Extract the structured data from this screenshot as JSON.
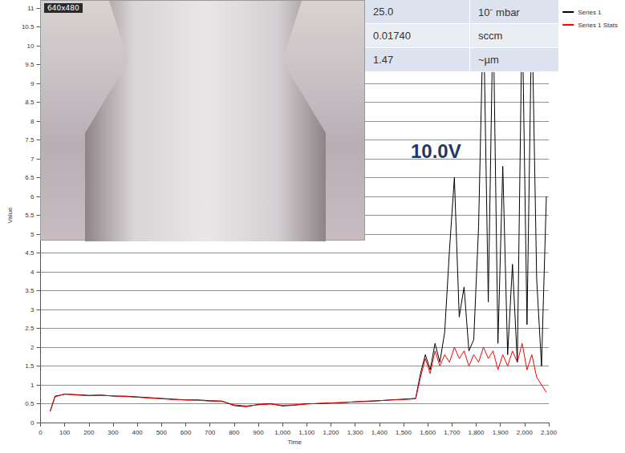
{
  "chart_data": {
    "type": "line",
    "x_label": "Time",
    "y_label": "Value",
    "annotations": [
      "10.0V"
    ],
    "x": [
      40,
      60,
      100,
      150,
      200,
      250,
      300,
      350,
      400,
      450,
      500,
      550,
      600,
      650,
      700,
      750,
      800,
      850,
      900,
      950,
      1000,
      1050,
      1100,
      1150,
      1200,
      1250,
      1300,
      1350,
      1400,
      1450,
      1500,
      1550,
      1570,
      1590,
      1610,
      1630,
      1650,
      1670,
      1690,
      1710,
      1730,
      1750,
      1770,
      1790,
      1810,
      1830,
      1850,
      1870,
      1890,
      1910,
      1930,
      1950,
      1970,
      1990,
      2010,
      2030,
      2050,
      2070,
      2090
    ],
    "series": [
      {
        "name": "Series 1",
        "color": "#000000",
        "values": [
          0.3,
          0.7,
          0.75,
          0.74,
          0.72,
          0.73,
          0.7,
          0.7,
          0.68,
          0.66,
          0.64,
          0.62,
          0.6,
          0.6,
          0.58,
          0.57,
          0.45,
          0.42,
          0.48,
          0.5,
          0.44,
          0.46,
          0.5,
          0.5,
          0.52,
          0.53,
          0.55,
          0.56,
          0.58,
          0.6,
          0.62,
          0.64,
          1.3,
          1.8,
          1.4,
          2.1,
          1.6,
          2.4,
          4.6,
          6.5,
          2.8,
          3.6,
          1.9,
          2.2,
          5.2,
          11,
          3.2,
          11,
          2.1,
          6.8,
          1.8,
          4.2,
          1.6,
          11,
          2.6,
          11,
          3.8,
          1.5,
          6.0
        ]
      },
      {
        "name": "Series 1 Stats",
        "color": "#ff0000",
        "values": [
          0.3,
          0.68,
          0.76,
          0.73,
          0.71,
          0.72,
          0.71,
          0.69,
          0.67,
          0.65,
          0.63,
          0.61,
          0.6,
          0.59,
          0.57,
          0.56,
          0.47,
          0.44,
          0.47,
          0.49,
          0.46,
          0.47,
          0.49,
          0.51,
          0.52,
          0.53,
          0.55,
          0.57,
          0.58,
          0.6,
          0.61,
          0.63,
          1.2,
          1.7,
          1.3,
          1.9,
          1.5,
          1.8,
          1.6,
          2.0,
          1.7,
          1.9,
          1.5,
          1.8,
          1.6,
          2.0,
          1.7,
          1.9,
          1.4,
          1.8,
          1.5,
          1.9,
          1.6,
          2.1,
          1.4,
          1.8,
          1.2,
          1.0,
          0.8
        ]
      }
    ],
    "xlim": [
      0,
      2100
    ],
    "xticks": [
      0,
      100,
      200,
      300,
      400,
      500,
      600,
      700,
      800,
      900,
      1000,
      1100,
      1200,
      1300,
      1400,
      1500,
      1600,
      1700,
      1800,
      1900,
      2000,
      2100
    ],
    "ylim": [
      0,
      11
    ],
    "yticks": [
      0,
      0.5,
      1,
      1.5,
      2,
      2.5,
      3,
      3.5,
      4,
      4.5,
      5,
      5.5,
      6,
      6.5,
      7,
      7.5,
      8,
      8.5,
      9,
      9.5,
      10,
      10.5,
      11
    ],
    "grid": true,
    "legend": "top-right"
  },
  "photo": {
    "caption": "640x480"
  },
  "table": {
    "rows": [
      [
        "25.0",
        "10⁻ mbar"
      ],
      [
        "0.01740",
        "sccm"
      ],
      [
        "1.47",
        "~µm"
      ]
    ]
  }
}
